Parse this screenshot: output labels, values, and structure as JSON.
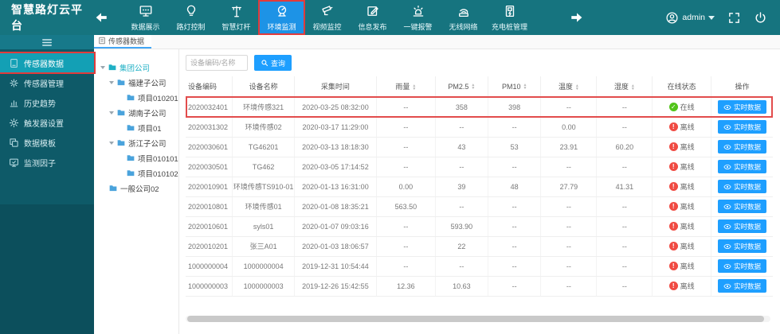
{
  "topbar": {
    "title": "智慧路灯云平台",
    "nav_items": [
      {
        "label": "数据展示",
        "icon": "data-display-icon",
        "active": false,
        "annotated": false
      },
      {
        "label": "路灯控制",
        "icon": "streetlamp-control-icon",
        "active": false,
        "annotated": false
      },
      {
        "label": "智慧灯杆",
        "icon": "smart-pole-icon",
        "active": false,
        "annotated": false
      },
      {
        "label": "环境监测",
        "icon": "environment-monitor-icon",
        "active": true,
        "annotated": true
      },
      {
        "label": "视频监控",
        "icon": "video-camera-icon",
        "active": false,
        "annotated": false
      },
      {
        "label": "信息发布",
        "icon": "info-publish-icon",
        "active": false,
        "annotated": false
      },
      {
        "label": "一键报警",
        "icon": "alarm-icon",
        "active": false,
        "annotated": false
      },
      {
        "label": "无线网络",
        "icon": "wireless-network-icon",
        "active": false,
        "annotated": false
      },
      {
        "label": "充电桩管理",
        "icon": "charging-pile-icon",
        "active": false,
        "annotated": false
      }
    ],
    "user": {
      "name": "admin"
    }
  },
  "sidebar": {
    "items": [
      {
        "label": "传感器数据",
        "icon": "sensor-data-icon",
        "active": true,
        "annotated": true
      },
      {
        "label": "传感器管理",
        "icon": "sensor-manage-icon",
        "active": false,
        "annotated": false
      },
      {
        "label": "历史趋势",
        "icon": "history-trend-icon",
        "active": false,
        "annotated": false
      },
      {
        "label": "触发器设置",
        "icon": "trigger-settings-icon",
        "active": false,
        "annotated": false
      },
      {
        "label": "数据模板",
        "icon": "data-template-icon",
        "active": false,
        "annotated": false
      },
      {
        "label": "监测因子",
        "icon": "monitor-factor-icon",
        "active": false,
        "annotated": false
      }
    ]
  },
  "tab": {
    "label": "传感器数据"
  },
  "tree": {
    "nodes": [
      {
        "label": "集团公司",
        "level": 0,
        "leaf": false,
        "expanded": true,
        "highlight": true
      },
      {
        "label": "福建子公司",
        "level": 1,
        "leaf": false,
        "expanded": true,
        "highlight": false
      },
      {
        "label": "项目010201",
        "level": 2,
        "leaf": true,
        "expanded": false,
        "highlight": false
      },
      {
        "label": "湖南子公司",
        "level": 1,
        "leaf": false,
        "expanded": true,
        "highlight": false
      },
      {
        "label": "项目01",
        "level": 2,
        "leaf": true,
        "expanded": false,
        "highlight": false
      },
      {
        "label": "浙江子公司",
        "level": 1,
        "leaf": false,
        "expanded": true,
        "highlight": false
      },
      {
        "label": "项目010101",
        "level": 2,
        "leaf": true,
        "expanded": false,
        "highlight": false
      },
      {
        "label": "项目010102",
        "level": 2,
        "leaf": true,
        "expanded": false,
        "highlight": false
      },
      {
        "label": "一般公司02",
        "level": 0,
        "leaf": true,
        "expanded": false,
        "highlight": false
      }
    ]
  },
  "search": {
    "placeholder": "设备编码/名称",
    "button_label": "查询"
  },
  "table": {
    "columns": [
      {
        "label": "设备编码",
        "sortable": false
      },
      {
        "label": "设备名称",
        "sortable": false
      },
      {
        "label": "采集时间",
        "sortable": false
      },
      {
        "label": "雨量",
        "sortable": true
      },
      {
        "label": "PM2.5",
        "sortable": true
      },
      {
        "label": "PM10",
        "sortable": true
      },
      {
        "label": "温度",
        "sortable": true
      },
      {
        "label": "湿度",
        "sortable": true
      },
      {
        "label": "在线状态",
        "sortable": false
      },
      {
        "label": "操作",
        "sortable": false
      }
    ],
    "status_labels": {
      "online": "在线",
      "offline": "离线"
    },
    "action_label": "实时数据",
    "rows": [
      {
        "cells": [
          "2020032401",
          "环境传感321",
          "2020-03-25 08:32:00",
          "--",
          "358",
          "398",
          "--",
          "--"
        ],
        "status": "online",
        "annotated": true
      },
      {
        "cells": [
          "2020031302",
          "环境传感02",
          "2020-03-17 11:29:00",
          "--",
          "--",
          "--",
          "0.00",
          "--"
        ],
        "status": "offline",
        "annotated": false
      },
      {
        "cells": [
          "2020030601",
          "TG46201",
          "2020-03-13 18:18:30",
          "--",
          "43",
          "53",
          "23.91",
          "60.20"
        ],
        "status": "offline",
        "annotated": false
      },
      {
        "cells": [
          "2020030501",
          "TG462",
          "2020-03-05 17:14:52",
          "--",
          "--",
          "--",
          "--",
          "--"
        ],
        "status": "offline",
        "annotated": false
      },
      {
        "cells": [
          "2020010901",
          "环境传感TS910-01",
          "2020-01-13 16:31:00",
          "0.00",
          "39",
          "48",
          "27.79",
          "41.31"
        ],
        "status": "offline",
        "annotated": false
      },
      {
        "cells": [
          "2020010801",
          "环境传感01",
          "2020-01-08 18:35:21",
          "563.50",
          "--",
          "--",
          "--",
          "--"
        ],
        "status": "offline",
        "annotated": false
      },
      {
        "cells": [
          "2020010601",
          "syls01",
          "2020-01-07 09:03:16",
          "--",
          "593.90",
          "--",
          "--",
          "--"
        ],
        "status": "offline",
        "annotated": false
      },
      {
        "cells": [
          "2020010201",
          "张三A01",
          "2020-01-03 18:06:57",
          "--",
          "22",
          "--",
          "--",
          "--"
        ],
        "status": "offline",
        "annotated": false
      },
      {
        "cells": [
          "1000000004",
          "1000000004",
          "2019-12-31 10:54:44",
          "--",
          "--",
          "--",
          "--",
          "--"
        ],
        "status": "offline",
        "annotated": false
      },
      {
        "cells": [
          "1000000003",
          "1000000003",
          "2019-12-26 15:42:55",
          "12.36",
          "10.63",
          "--",
          "--",
          "--"
        ],
        "status": "offline",
        "annotated": false
      }
    ]
  },
  "colors": {
    "topbar_teal": "#16747f",
    "sidebar_teal": "#0e5a68",
    "active_menu_teal": "#13a0b5",
    "active_nav_blue": "#1d93e6",
    "accent_blue": "#1e9fff",
    "online_green": "#52c41a",
    "offline_red": "#f04b43",
    "annotation_red": "#e13b3b"
  }
}
